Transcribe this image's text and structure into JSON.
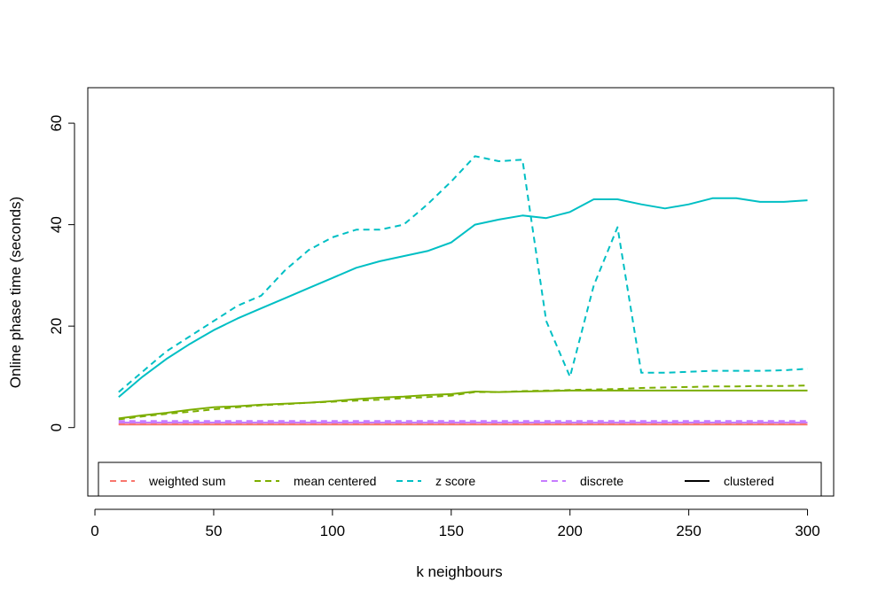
{
  "chart_data": {
    "type": "line",
    "title": "",
    "xlabel": "k neighbours",
    "ylabel": "Online phase time (seconds)",
    "xlim": [
      -3,
      311
    ],
    "ylim": [
      -13.5,
      67
    ],
    "x_ticks": [
      0,
      50,
      100,
      150,
      200,
      250,
      300
    ],
    "y_ticks": [
      0,
      20,
      40,
      60
    ],
    "grid": false,
    "legend_position": "bottom",
    "x": [
      10,
      20,
      30,
      40,
      50,
      60,
      70,
      80,
      90,
      100,
      110,
      120,
      130,
      140,
      150,
      160,
      170,
      180,
      190,
      200,
      210,
      220,
      230,
      240,
      250,
      260,
      270,
      280,
      290,
      300
    ],
    "series": [
      {
        "name": "weighted sum",
        "color": "#F8766D",
        "style": "dashed",
        "values": [
          0.7,
          0.7,
          0.7,
          0.7,
          0.7,
          0.7,
          0.7,
          0.7,
          0.7,
          0.7,
          0.7,
          0.7,
          0.7,
          0.7,
          0.7,
          0.7,
          0.7,
          0.7,
          0.7,
          0.7,
          0.7,
          0.7,
          0.7,
          0.7,
          0.7,
          0.7,
          0.7,
          0.7,
          0.7,
          0.7
        ]
      },
      {
        "name": "weighted sum",
        "color": "#F8766D",
        "style": "solid",
        "values": [
          0.6,
          0.6,
          0.6,
          0.6,
          0.6,
          0.6,
          0.6,
          0.6,
          0.6,
          0.6,
          0.6,
          0.6,
          0.6,
          0.6,
          0.6,
          0.6,
          0.6,
          0.6,
          0.6,
          0.6,
          0.6,
          0.6,
          0.6,
          0.6,
          0.6,
          0.6,
          0.6,
          0.6,
          0.6,
          0.6
        ]
      },
      {
        "name": "mean centered",
        "color": "#7CAE00",
        "style": "dashed",
        "values": [
          1.6,
          2.2,
          2.7,
          3.1,
          3.6,
          4.0,
          4.4,
          4.6,
          4.9,
          5.1,
          5.3,
          5.5,
          5.8,
          6.0,
          6.3,
          7.0,
          7.0,
          7.2,
          7.3,
          7.4,
          7.5,
          7.6,
          7.8,
          7.9,
          8.0,
          8.1,
          8.1,
          8.2,
          8.2,
          8.3
        ]
      },
      {
        "name": "mean centered",
        "color": "#7CAE00",
        "style": "solid",
        "values": [
          1.8,
          2.4,
          2.9,
          3.5,
          4.0,
          4.2,
          4.5,
          4.7,
          4.9,
          5.2,
          5.6,
          5.9,
          6.1,
          6.4,
          6.6,
          7.1,
          7.0,
          7.1,
          7.2,
          7.3,
          7.3,
          7.3,
          7.3,
          7.3,
          7.3,
          7.3,
          7.3,
          7.3,
          7.3,
          7.3
        ]
      },
      {
        "name": "z score",
        "color": "#00BFC4",
        "style": "dashed",
        "values": [
          7.0,
          11.0,
          15.0,
          18.0,
          21.0,
          24.0,
          26.0,
          31.0,
          35.0,
          37.5,
          39.0,
          39.0,
          40.0,
          44.0,
          48.5,
          53.5,
          52.5,
          52.8,
          21.0,
          10.0,
          28.0,
          39.5,
          10.8,
          10.8,
          11.0,
          11.2,
          11.2,
          11.2,
          11.3,
          11.6
        ]
      },
      {
        "name": "z score",
        "color": "#00BFC4",
        "style": "solid",
        "values": [
          6.0,
          10.0,
          13.5,
          16.5,
          19.2,
          21.5,
          23.5,
          25.5,
          27.5,
          29.5,
          31.5,
          32.8,
          33.8,
          34.8,
          36.5,
          40.0,
          41.0,
          41.8,
          41.3,
          42.5,
          45.0,
          45.0,
          44.0,
          43.2,
          44.0,
          45.2,
          45.2,
          44.5,
          44.5,
          44.8
        ]
      },
      {
        "name": "discrete",
        "color": "#C77CFF",
        "style": "dashed",
        "values": [
          1.3,
          1.3,
          1.3,
          1.3,
          1.3,
          1.3,
          1.3,
          1.3,
          1.3,
          1.3,
          1.3,
          1.3,
          1.3,
          1.3,
          1.3,
          1.3,
          1.3,
          1.3,
          1.3,
          1.3,
          1.3,
          1.3,
          1.3,
          1.3,
          1.3,
          1.3,
          1.3,
          1.3,
          1.3,
          1.3
        ]
      },
      {
        "name": "discrete",
        "color": "#C77CFF",
        "style": "solid",
        "values": [
          1.0,
          1.0,
          1.0,
          1.0,
          1.0,
          1.0,
          1.0,
          1.0,
          1.0,
          1.0,
          1.0,
          1.0,
          1.0,
          1.0,
          1.0,
          1.0,
          1.0,
          1.0,
          1.0,
          1.0,
          1.0,
          1.0,
          1.0,
          1.0,
          1.0,
          1.0,
          1.0,
          1.0,
          1.0,
          1.0
        ]
      }
    ],
    "legend": [
      {
        "label": "weighted sum",
        "color": "#F8766D",
        "style": "dashed"
      },
      {
        "label": "mean centered",
        "color": "#7CAE00",
        "style": "dashed"
      },
      {
        "label": "z score",
        "color": "#00BFC4",
        "style": "dashed"
      },
      {
        "label": "discrete",
        "color": "#C77CFF",
        "style": "dashed"
      },
      {
        "label": "clustered",
        "color": "#000000",
        "style": "solid"
      }
    ]
  }
}
